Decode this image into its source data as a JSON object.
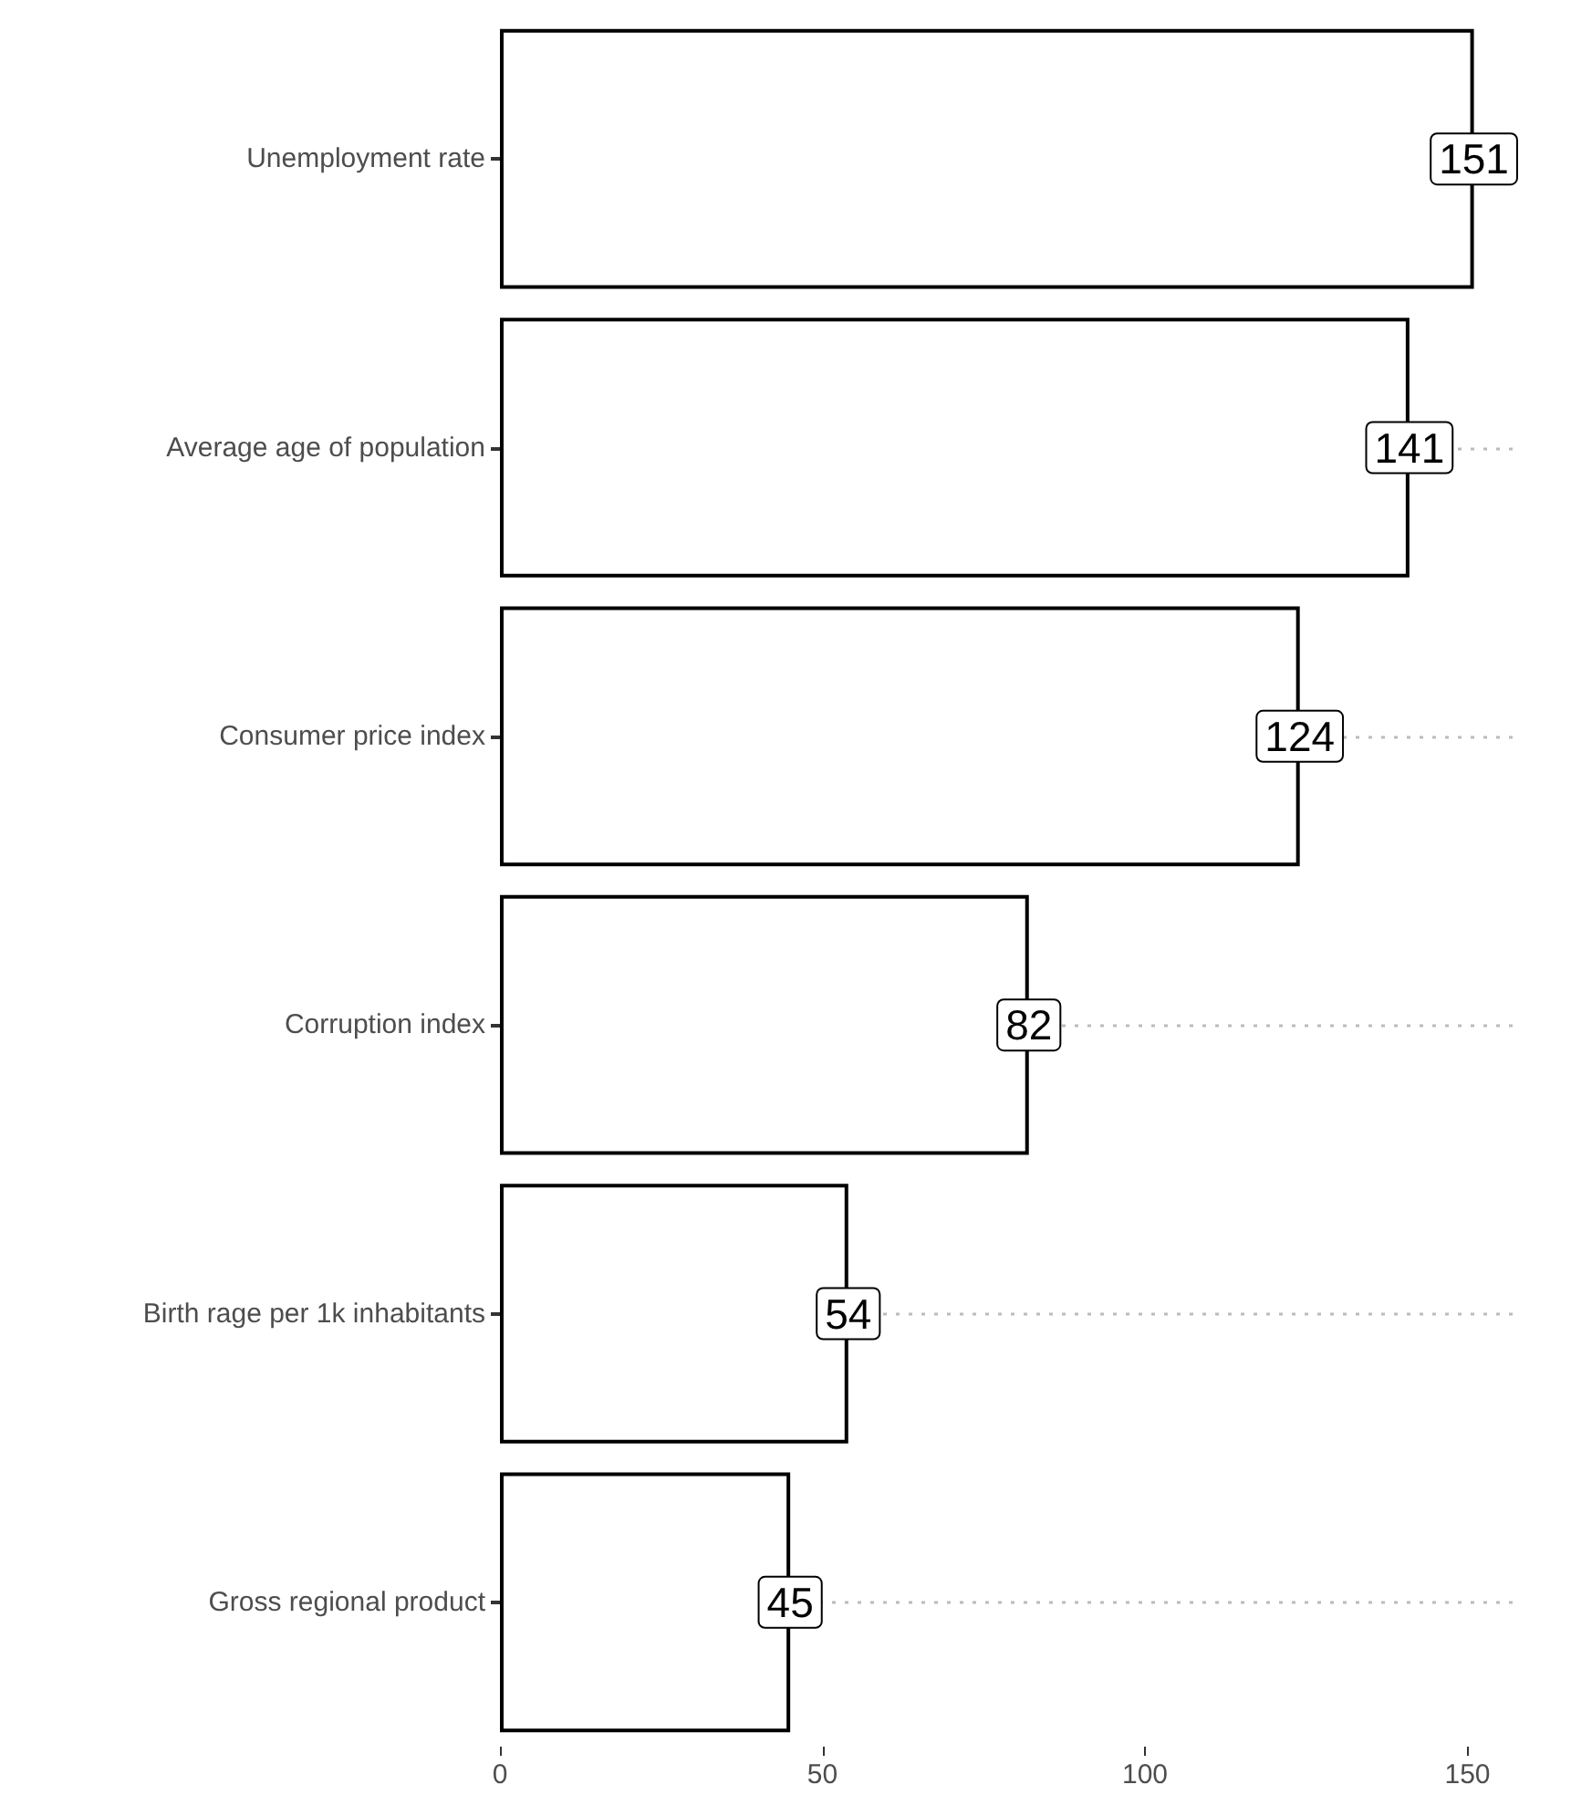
{
  "chart_data": {
    "type": "bar",
    "orientation": "horizontal",
    "categories": [
      "Unemployment rate",
      "Average age of population",
      "Consumer price index",
      "Corruption index",
      "Birth rage per 1k inhabitants",
      "Gross regional product"
    ],
    "values": [
      151,
      141,
      124,
      82,
      54,
      45
    ],
    "color": "#ffffff",
    "xlim": [
      0,
      157
    ],
    "xticks": [
      0,
      50,
      100,
      150
    ],
    "grid": "y",
    "data_labels": true
  }
}
